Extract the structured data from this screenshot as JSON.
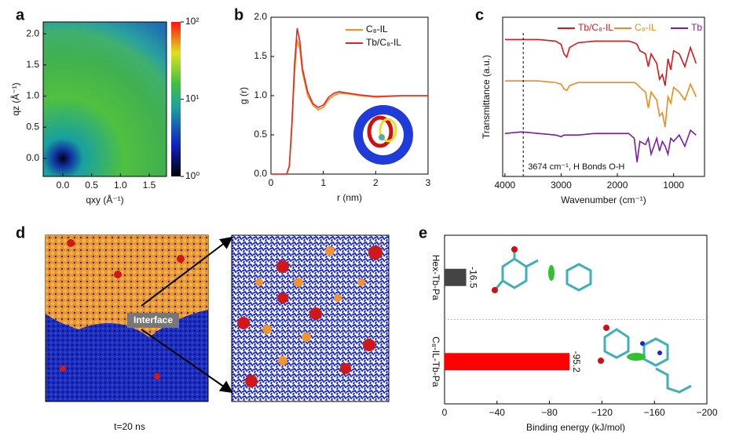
{
  "chart_data": [
    {
      "panel": "a",
      "type": "heatmap",
      "xlabel": "qxy (Å⁻¹)",
      "ylabel": "qz (Å⁻¹)",
      "xlim": [
        -0.34,
        1.8
      ],
      "ylim": [
        -0.29,
        2.19
      ],
      "xticks": [
        {
          "value": 0,
          "label": "0.0"
        },
        0.5,
        {
          "value": 1,
          "label": "1.0"
        },
        1.5
      ],
      "yticks": [
        {
          "value": 0,
          "label": "0.0"
        },
        0.5,
        {
          "value": 1,
          "label": "1.0"
        },
        1.5,
        {
          "value": 2,
          "label": "2.0"
        }
      ],
      "clim": [
        1,
        100
      ],
      "clog": true,
      "cticks": [
        {
          "value": 1,
          "label": "10⁰"
        },
        {
          "value": 10,
          "label": "10¹"
        },
        {
          "value": 100,
          "label": "10²"
        }
      ]
    },
    {
      "panel": "b",
      "type": "line",
      "xlabel": "r (nm)",
      "ylabel": "g (r)",
      "xlim": [
        0,
        3
      ],
      "ylim": [
        0,
        2
      ],
      "xticks": [
        0,
        1,
        2,
        3
      ],
      "yticks": [
        {
          "value": 0,
          "label": "0.0"
        },
        0.5,
        {
          "value": 1,
          "label": "1.0"
        },
        1.5,
        {
          "value": 2,
          "label": "2.0"
        }
      ],
      "x": [
        0,
        0.2,
        0.3,
        0.35,
        0.4,
        0.45,
        0.5,
        0.55,
        0.6,
        0.7,
        0.8,
        0.9,
        1.0,
        1.1,
        1.2,
        1.3,
        1.5,
        1.7,
        2.0,
        2.5,
        3.0
      ],
      "series": [
        {
          "name": "C₈-IL",
          "color": "#ff8c1a",
          "values": [
            0,
            0,
            0,
            0.1,
            0.6,
            1.3,
            1.72,
            1.6,
            1.3,
            1.0,
            0.88,
            0.82,
            0.85,
            0.95,
            1.0,
            1.03,
            1.02,
            1.0,
            0.98,
            1.0,
            1.0
          ]
        },
        {
          "name": "Tb/C₈-IL",
          "color": "#e8231e",
          "values": [
            0,
            0,
            0,
            0.1,
            0.65,
            1.4,
            1.86,
            1.7,
            1.35,
            1.05,
            0.9,
            0.85,
            0.88,
            0.98,
            1.03,
            1.05,
            1.03,
            1.01,
            0.99,
            1.0,
            1.0
          ]
        }
      ]
    },
    {
      "panel": "c",
      "type": "line",
      "xlabel": "Wavenumber (cm⁻¹)",
      "ylabel": "Transmittance (a.u.)",
      "xlim": [
        4040,
        450
      ],
      "ylim": [
        0,
        1
      ],
      "xticks": [
        4000,
        3000,
        2000,
        1000
      ],
      "annotation": "3674 cm⁻¹, H Bonds O-H",
      "annotation_line": 3674,
      "x": [
        4000,
        3700,
        3400,
        3100,
        3000,
        2950,
        2900,
        2850,
        2700,
        2400,
        2100,
        1800,
        1700,
        1650,
        1600,
        1500,
        1450,
        1400,
        1300,
        1250,
        1200,
        1150,
        1100,
        1050,
        1000,
        900,
        800,
        700,
        600
      ],
      "series": [
        {
          "name": "Tb/C₈-IL",
          "color": "#d7191c",
          "values": [
            0.86,
            0.86,
            0.86,
            0.85,
            0.83,
            0.77,
            0.75,
            0.81,
            0.84,
            0.85,
            0.85,
            0.85,
            0.84,
            0.83,
            0.79,
            0.77,
            0.69,
            0.77,
            0.71,
            0.61,
            0.64,
            0.57,
            0.74,
            0.67,
            0.79,
            0.77,
            0.69,
            0.81,
            0.71
          ]
        },
        {
          "name": "C₈-IL",
          "color": "#f08a1c",
          "values": [
            0.6,
            0.6,
            0.6,
            0.59,
            0.58,
            0.55,
            0.54,
            0.57,
            0.59,
            0.59,
            0.59,
            0.59,
            0.59,
            0.58,
            0.56,
            0.53,
            0.43,
            0.53,
            0.48,
            0.38,
            0.4,
            0.31,
            0.5,
            0.46,
            0.56,
            0.53,
            0.48,
            0.58,
            0.5
          ]
        },
        {
          "name": "Tb",
          "color": "#7b1fa2",
          "values": [
            0.27,
            0.28,
            0.27,
            0.26,
            0.25,
            0.26,
            0.26,
            0.26,
            0.26,
            0.27,
            0.27,
            0.27,
            0.24,
            0.09,
            0.22,
            0.2,
            0.24,
            0.14,
            0.24,
            0.16,
            0.22,
            0.19,
            0.14,
            0.24,
            0.22,
            0.26,
            0.19,
            0.29,
            0.26
          ]
        }
      ]
    },
    {
      "panel": "d",
      "type": "image",
      "annotation": "Interface",
      "caption": "t=20 ns"
    },
    {
      "panel": "e",
      "type": "hbar",
      "xlabel": "Binding energy (kJ/mol)",
      "categories": [
        "Hex-Tb-Pa",
        "C₈-IL-Tb-Pa"
      ],
      "values": [
        -16.5,
        -95.2
      ],
      "colors": [
        "#444444",
        "#ff0000"
      ],
      "xlim": [
        0,
        -200
      ],
      "xticks": [
        0,
        {
          "value": -40,
          "label": "−40"
        },
        {
          "value": -80,
          "label": "−80"
        },
        {
          "value": -120,
          "label": "−120"
        },
        {
          "value": -160,
          "label": "−160"
        },
        {
          "value": -200,
          "label": "−200"
        }
      ]
    }
  ]
}
